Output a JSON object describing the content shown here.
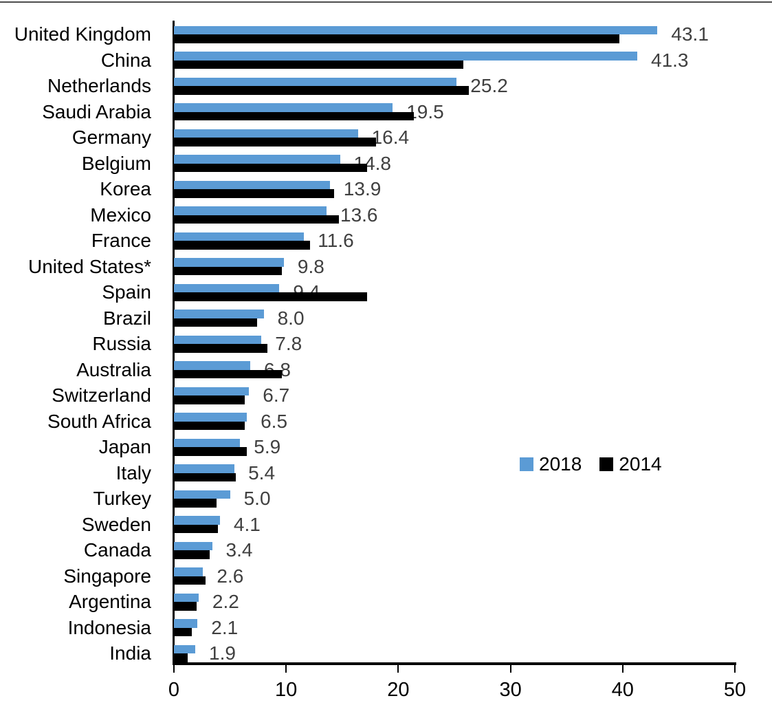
{
  "chart_data": {
    "type": "bar",
    "orientation": "horizontal",
    "title": "",
    "xlabel": "",
    "ylabel": "",
    "xlim": [
      0,
      50
    ],
    "x_ticks": [
      0,
      10,
      20,
      30,
      40,
      50
    ],
    "x_tick_labels": [
      "0",
      "10",
      "20",
      "30",
      "40",
      "50"
    ],
    "grid": false,
    "categories": [
      "United Kingdom",
      "China",
      "Netherlands",
      "Saudi Arabia",
      "Germany",
      "Belgium",
      "Korea",
      "Mexico",
      "France",
      "United States*",
      "Spain",
      "Brazil",
      "Russia",
      "Australia",
      "Switzerland",
      "South Africa",
      "Japan",
      "Italy",
      "Turkey",
      "Sweden",
      "Canada",
      "Singapore",
      "Argentina",
      "Indonesia",
      "India"
    ],
    "series": [
      {
        "name": "2018",
        "color": "#5b9bd5",
        "values": [
          43.1,
          41.3,
          25.2,
          19.5,
          16.4,
          14.8,
          13.9,
          13.6,
          11.6,
          9.8,
          9.4,
          8.0,
          7.8,
          6.8,
          6.7,
          6.5,
          5.9,
          5.4,
          5.0,
          4.1,
          3.4,
          2.6,
          2.2,
          2.1,
          1.9
        ]
      },
      {
        "name": "2014",
        "color": "#000000",
        "values": [
          39.7,
          25.8,
          26.3,
          21.4,
          18.0,
          17.2,
          14.3,
          14.7,
          12.1,
          9.6,
          17.2,
          7.4,
          8.3,
          9.6,
          6.3,
          6.3,
          6.5,
          5.5,
          3.8,
          3.9,
          3.2,
          2.8,
          2.0,
          1.6,
          1.2
        ]
      }
    ],
    "value_labels": [
      "43.1",
      "41.3",
      "25.2",
      "19.5",
      "16.4",
      "14.8",
      "13.9",
      "13.6",
      "11.6",
      "9.8",
      "9.4",
      "8.0",
      "7.8",
      "6.8",
      "6.7",
      "6.5",
      "5.9",
      "5.4",
      "5.0",
      "4.1",
      "3.4",
      "2.6",
      "2.2",
      "2.1",
      "1.9"
    ],
    "value_label_series": "2018",
    "legend": {
      "position": "center-right",
      "items": [
        {
          "label": "2018",
          "color": "#5b9bd5"
        },
        {
          "label": "2014",
          "color": "#000000"
        }
      ]
    }
  },
  "colors": {
    "bar_2018": "#5b9bd5",
    "bar_2014": "#000000",
    "value_label": "#404040",
    "axis": "#000000",
    "background": "#ffffff"
  }
}
